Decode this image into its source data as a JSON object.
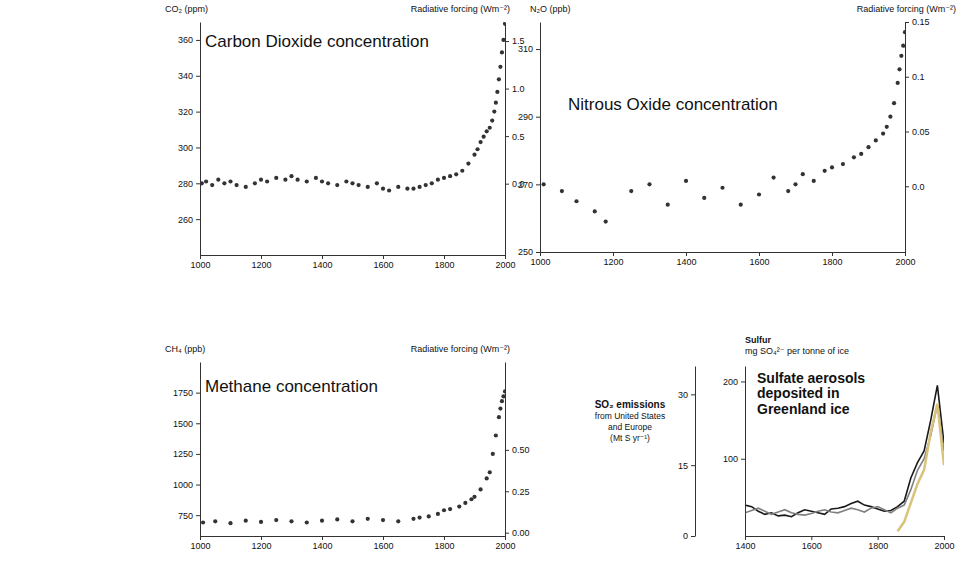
{
  "chart_data": [
    {
      "type": "scatter",
      "title": "Carbon Dioxide concentration",
      "y_label": [
        "CO₂ (ppm)"
      ],
      "y2_label": [
        "Radiative forcing (Wm⁻²)"
      ],
      "color": "#333333",
      "marker": "circle",
      "x": [
        1006,
        1020,
        1040,
        1060,
        1080,
        1100,
        1120,
        1150,
        1180,
        1200,
        1220,
        1250,
        1280,
        1300,
        1320,
        1350,
        1380,
        1400,
        1420,
        1450,
        1480,
        1500,
        1520,
        1550,
        1580,
        1600,
        1620,
        1650,
        1680,
        1700,
        1720,
        1740,
        1760,
        1780,
        1800,
        1820,
        1840,
        1860,
        1880,
        1900,
        1910,
        1920,
        1930,
        1940,
        1950,
        1958,
        1965,
        1970,
        1975,
        1980,
        1985,
        1990,
        1995,
        2000
      ],
      "values": [
        280,
        281,
        279,
        282,
        280,
        281,
        279,
        278,
        280,
        282,
        281,
        283,
        282,
        284,
        282,
        281,
        283,
        281,
        280,
        279,
        281,
        280,
        279,
        278,
        280,
        277,
        276,
        278,
        277,
        277,
        278,
        279,
        280,
        282,
        283,
        284,
        285,
        287,
        291,
        296,
        299,
        303,
        306,
        309,
        311,
        315,
        320,
        325,
        331,
        338,
        345,
        353,
        360,
        369
      ],
      "xlim": [
        1000,
        2000
      ],
      "xticks": [
        1000,
        1200,
        1400,
        1600,
        1800,
        2000
      ],
      "ylim": [
        240,
        370
      ],
      "yticks": [
        260,
        280,
        300,
        320,
        340,
        360
      ],
      "y2lim": [
        -0.75,
        1.7
      ],
      "y2ticks": [
        {
          "value": 0,
          "label": "0.0"
        },
        0.5,
        {
          "value": 1,
          "label": "1.0"
        },
        1.5
      ]
    },
    {
      "type": "scatter",
      "title": "Nitrous Oxide concentration",
      "y_label": [
        "N₂O (ppb)"
      ],
      "y2_label": [
        "Radiative forcing (Wm⁻²)"
      ],
      "color": "#333333",
      "marker": "circle",
      "x": [
        1010,
        1060,
        1100,
        1150,
        1180,
        1250,
        1300,
        1350,
        1400,
        1450,
        1500,
        1550,
        1600,
        1640,
        1680,
        1700,
        1720,
        1750,
        1780,
        1800,
        1830,
        1860,
        1880,
        1900,
        1920,
        1940,
        1950,
        1960,
        1970,
        1980,
        1985,
        1990,
        1995,
        2000
      ],
      "values": [
        270,
        268,
        265,
        262,
        259,
        268,
        270,
        264,
        271,
        266,
        269,
        264,
        267,
        272,
        268,
        270,
        273,
        271,
        274,
        275,
        276,
        278,
        279,
        281,
        283,
        285,
        287,
        290,
        294,
        300,
        304,
        308,
        311,
        315
      ],
      "xlim": [
        1000,
        2000
      ],
      "xticks": [
        1000,
        1200,
        1400,
        1600,
        1800,
        2000
      ],
      "ylim": [
        250,
        318
      ],
      "yticks": [
        250,
        270,
        290,
        310
      ],
      "y2lim": [
        -0.06,
        0.15
      ],
      "y2ticks": [
        {
          "value": 0,
          "label": "0.0"
        },
        0.05,
        0.1,
        0.15
      ]
    },
    {
      "type": "scatter",
      "title": "Methane concentration",
      "y_label": [
        "CH₄ (ppb)"
      ],
      "y2_label": [
        "Radiative forcing (Wm⁻²)"
      ],
      "color": "#333333",
      "marker": "circle",
      "x": [
        1010,
        1050,
        1100,
        1150,
        1200,
        1250,
        1300,
        1350,
        1400,
        1450,
        1500,
        1550,
        1600,
        1650,
        1700,
        1720,
        1750,
        1780,
        1800,
        1820,
        1850,
        1870,
        1890,
        1900,
        1920,
        1940,
        1950,
        1960,
        1970,
        1980,
        1985,
        1990,
        1995,
        2000
      ],
      "values": [
        690,
        700,
        685,
        705,
        695,
        710,
        700,
        690,
        705,
        715,
        700,
        720,
        710,
        700,
        720,
        730,
        740,
        760,
        790,
        800,
        820,
        850,
        880,
        900,
        960,
        1050,
        1100,
        1250,
        1400,
        1550,
        1620,
        1680,
        1720,
        1760
      ],
      "xlim": [
        1000,
        2000
      ],
      "xticks": [
        1000,
        1200,
        1400,
        1600,
        1800,
        2000
      ],
      "ylim": [
        580,
        2000
      ],
      "yticks": [
        750,
        1000,
        1250,
        1500,
        1750
      ],
      "y2lim": [
        -0.02,
        1.03
      ],
      "y2ticks": [
        {
          "value": 0,
          "label": "0.00"
        },
        0.25,
        {
          "value": 0.5,
          "label": "0.50"
        }
      ]
    },
    {
      "type": "line",
      "title": "Sulfate aerosols deposited in Greenland ice",
      "y_label": [
        "Sulfur",
        "mg SO₄²⁻ per tonne of ice"
      ],
      "y2_label": [
        "SO₂ emissions",
        "from United States",
        "and Europe",
        "(Mt S yr⁻¹)"
      ],
      "x": [
        1400,
        1420,
        1440,
        1460,
        1480,
        1500,
        1520,
        1540,
        1560,
        1580,
        1600,
        1620,
        1640,
        1660,
        1680,
        1700,
        1720,
        1740,
        1760,
        1780,
        1800,
        1820,
        1840,
        1860,
        1880,
        1900,
        1920,
        1940,
        1960,
        1980,
        2000
      ],
      "series": [
        {
          "color": "#1a1a1a",
          "values": [
            40,
            38,
            32,
            28,
            30,
            26,
            27,
            25,
            30,
            34,
            32,
            30,
            28,
            35,
            36,
            38,
            42,
            45,
            40,
            38,
            35,
            32,
            33,
            38,
            45,
            75,
            95,
            110,
            150,
            195,
            120
          ]
        },
        {
          "color": "#808080",
          "values": [
            30,
            33,
            36,
            32,
            28,
            31,
            34,
            30,
            28,
            27,
            29,
            32,
            34,
            31,
            30,
            33,
            36,
            34,
            31,
            36,
            38,
            34,
            30,
            36,
            40,
            60,
            85,
            100,
            130,
            170,
            110
          ]
        },
        {
          "color": "#d9c27a",
          "axis": "y2",
          "values": [
            null,
            null,
            null,
            null,
            null,
            null,
            null,
            null,
            null,
            null,
            null,
            null,
            null,
            null,
            null,
            null,
            null,
            null,
            null,
            null,
            null,
            null,
            null,
            1,
            3,
            7,
            11,
            14,
            22,
            28,
            15
          ]
        }
      ],
      "xlim": [
        1400,
        2000
      ],
      "xticks": [
        1400,
        1600,
        1800,
        2000
      ],
      "ylim": [
        0,
        220
      ],
      "yticks": [
        100,
        200
      ],
      "y2lim": [
        0,
        36
      ],
      "y2ticks": [
        0,
        15,
        30
      ]
    }
  ]
}
